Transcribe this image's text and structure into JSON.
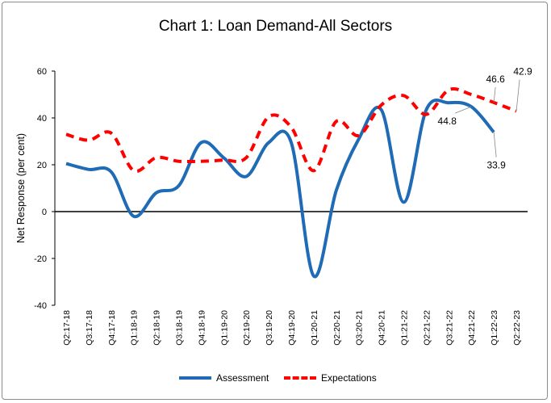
{
  "chart_data": {
    "type": "line",
    "title": "Chart 1: Loan Demand-All Sectors",
    "xlabel": "",
    "ylabel": "Net Response (per cent)",
    "ylim": [
      -40,
      60
    ],
    "yticks": [
      "-40",
      "-20",
      "0",
      "20",
      "40",
      "60"
    ],
    "categories": [
      "Q2:17-18",
      "Q3:17-18",
      "Q4:17-18",
      "Q1:18-19",
      "Q2:18-19",
      "Q3:18-19",
      "Q4:18-19",
      "Q1:19-20",
      "Q2:19-20",
      "Q3:19-20",
      "Q4:19-20",
      "Q1:20-21",
      "Q2:20-21",
      "Q3:20-21",
      "Q4:20-21",
      "Q1:21-22",
      "Q2:21-22",
      "Q3:21-22",
      "Q4:21-22",
      "Q1:22-23",
      "Q2:22-23"
    ],
    "series": [
      {
        "name": "Assessment",
        "color": "#1f6bb5",
        "style": "solid",
        "values": [
          20.5,
          18,
          17,
          -2,
          8,
          11,
          29.5,
          23,
          15,
          29.5,
          29.5,
          -27.5,
          9,
          31,
          43.5,
          4,
          43.5,
          46.5,
          44.8,
          33.9,
          null
        ]
      },
      {
        "name": "Expectations",
        "color": "#ff0000",
        "style": "dashed",
        "values": [
          33,
          30.5,
          33.5,
          17.5,
          23,
          21.5,
          21.5,
          22,
          23,
          40.5,
          36,
          17.5,
          38.5,
          32.5,
          45.5,
          49.5,
          41.5,
          52,
          50,
          46.6,
          42.9
        ]
      }
    ],
    "data_labels": [
      {
        "text": "46.6",
        "series": 1,
        "index": 19
      },
      {
        "text": "42.9",
        "series": 1,
        "index": 20
      },
      {
        "text": "44.8",
        "series": 0,
        "index": 18
      },
      {
        "text": "33.9",
        "series": 0,
        "index": 19
      }
    ],
    "grid": false,
    "legend_position": "bottom"
  }
}
